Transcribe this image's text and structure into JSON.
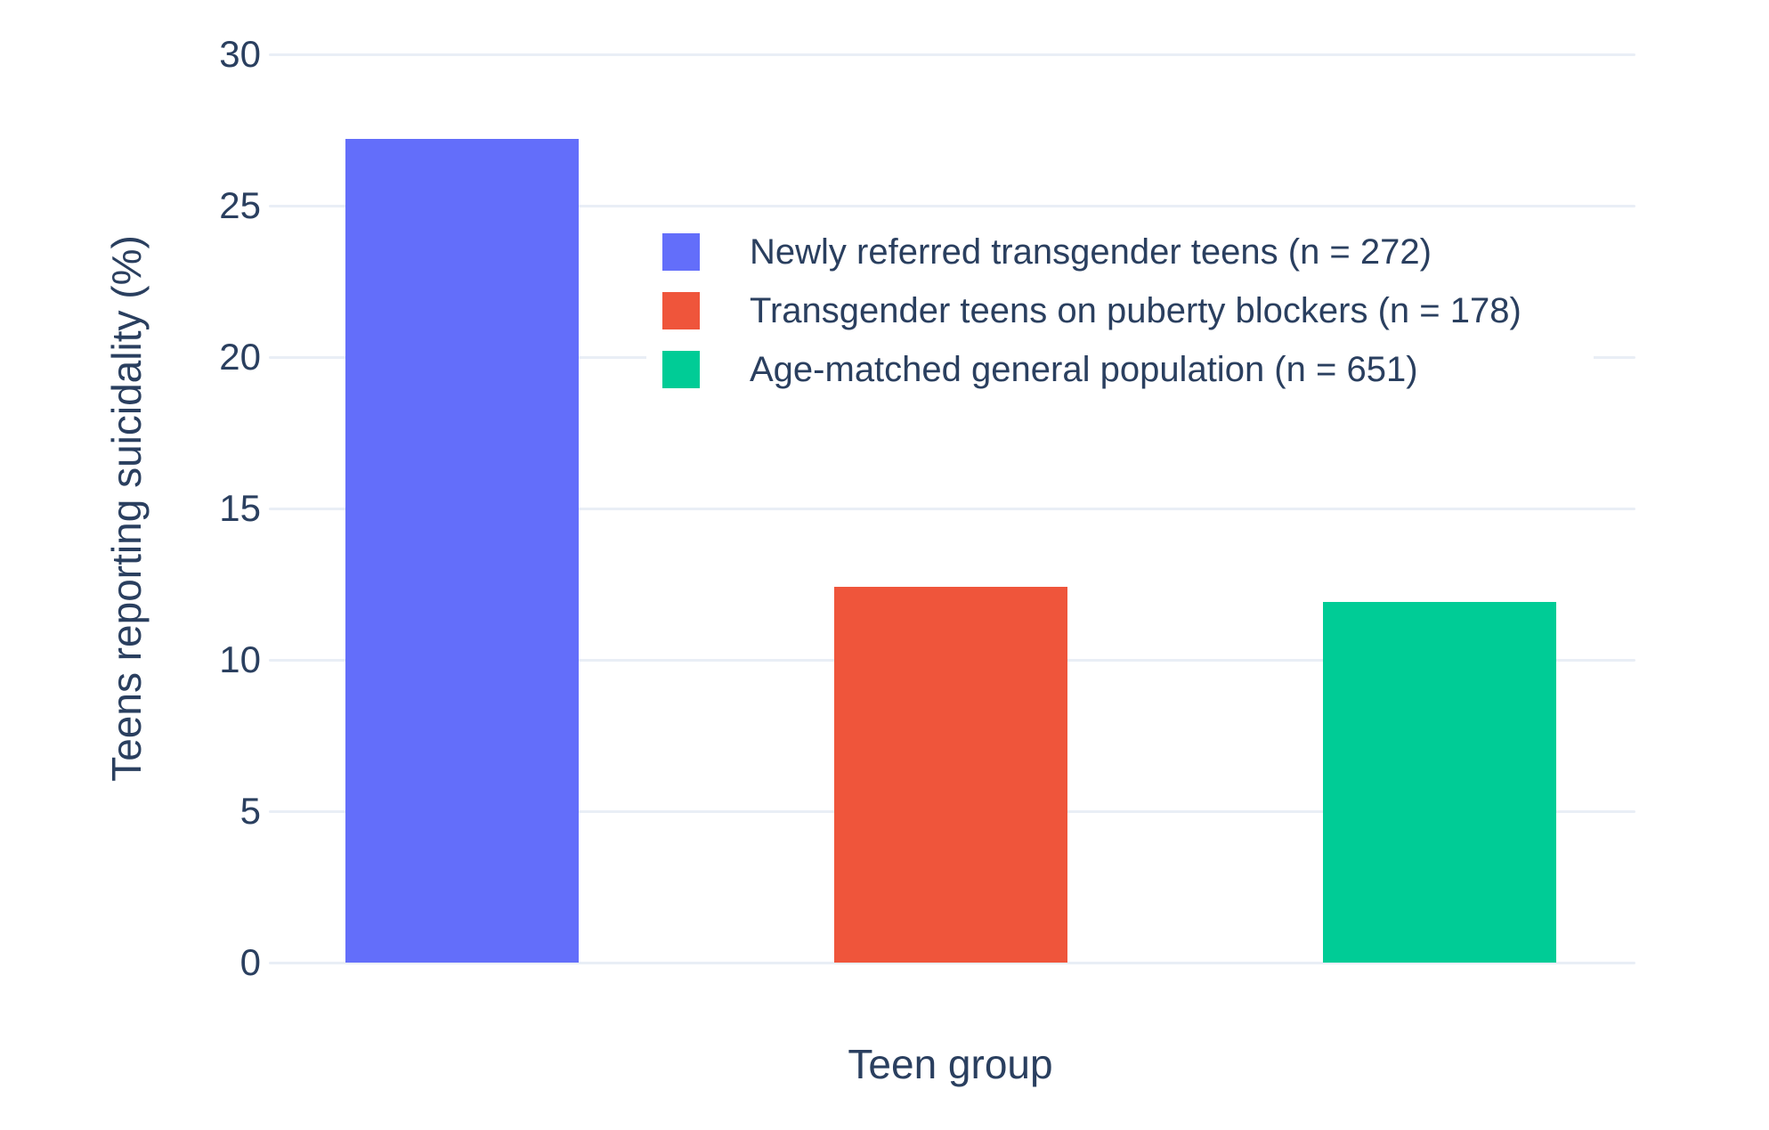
{
  "chart_data": {
    "type": "bar",
    "title": "",
    "xlabel": "Teen group",
    "ylabel": "Teens reporting suicidality (%)",
    "ylim": [
      0,
      30
    ],
    "yticks": [
      0,
      5,
      10,
      15,
      20,
      25,
      30
    ],
    "grid": true,
    "x_tick_labels_shown": false,
    "legend_position": "inside-top-center",
    "categories": [
      "Newly referred transgender teens (n = 272)",
      "Transgender teens on puberty blockers (n = 178)",
      "Age-matched general population (n = 651)"
    ],
    "bars": [
      {
        "label": "Newly referred transgender teens (n = 272)",
        "value": 27.2,
        "color": "#636EFA"
      },
      {
        "label": "Transgender teens on puberty blockers (n = 178)",
        "value": 12.4,
        "color": "#EF553B"
      },
      {
        "label": "Age-matched general population (n = 651)",
        "value": 11.9,
        "color": "#00CC96"
      }
    ],
    "colors": {
      "background": "#FFFFFF",
      "gridline": "#E9EEF6",
      "text": "#2A3F5F",
      "legend_background": "#FFFFFF"
    }
  }
}
